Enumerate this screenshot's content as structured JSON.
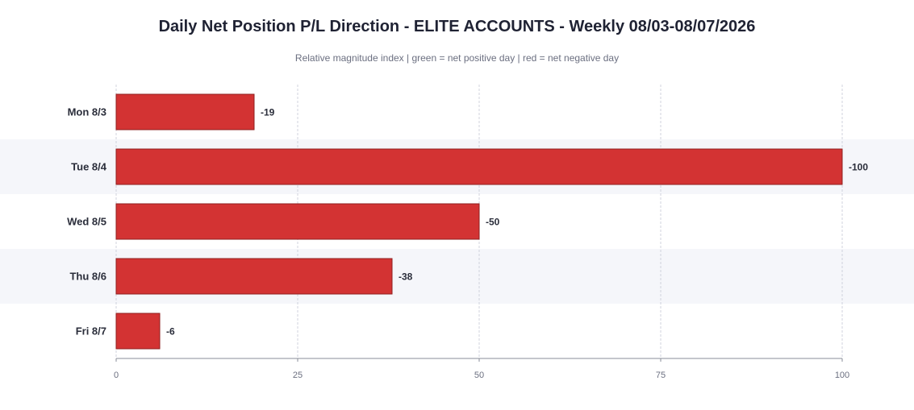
{
  "chart_data": {
    "type": "bar",
    "orientation": "horizontal",
    "title": "Daily Net Position P/L Direction - ELITE ACCOUNTS - Weekly 08/03-08/07/2026",
    "subtitle": "Relative magnitude index  |  green = net positive day  |  red = net negative day",
    "categories": [
      "Mon 8/3",
      "Tue 8/4",
      "Wed 8/5",
      "Thu 8/6",
      "Fri 8/7"
    ],
    "values": [
      -19,
      -100,
      -50,
      -38,
      -6
    ],
    "value_labels": [
      "-19",
      "-100",
      "-50",
      "-38",
      "-6"
    ],
    "xlim": [
      0,
      100
    ],
    "xticks": [
      0,
      25,
      50,
      75,
      100
    ],
    "xtick_labels": [
      "0",
      "25",
      "50",
      "75",
      "100"
    ],
    "grid": true,
    "colors": {
      "negative": "#d33333",
      "positive": "#2e9e4f",
      "bar_stroke": "#8f1f1f",
      "band": "#f5f6fa",
      "grid": "#d0d3dc",
      "axis": "#8a8d99"
    }
  }
}
